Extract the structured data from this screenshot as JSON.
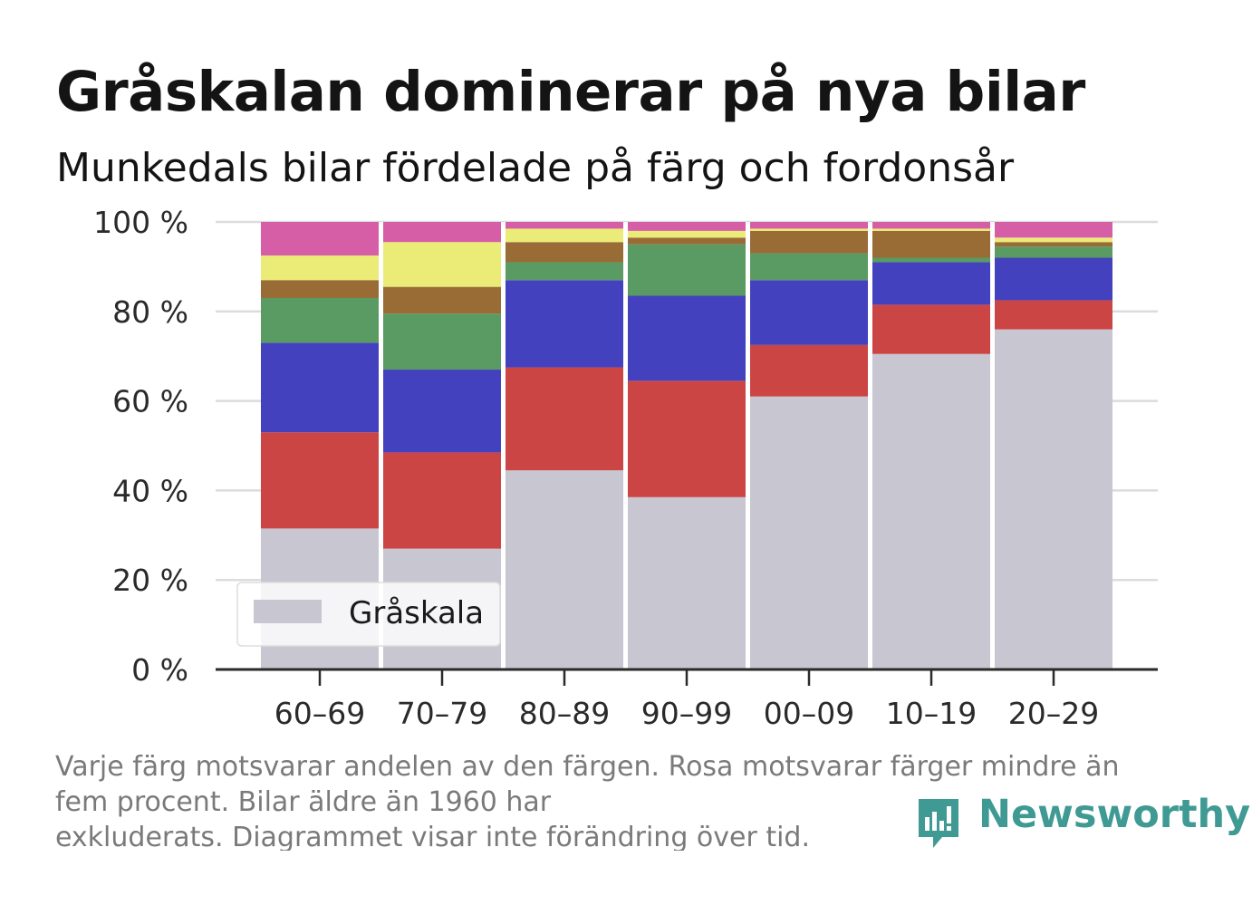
{
  "title": "Gråskalan dominerar på nya bilar",
  "subtitle": "Munkedals bilar fördelade på färg och fordonsår",
  "caption": {
    "line1": "Varje färg motsvarar andelen av den färgen. Rosa motsvarar färger mindre än",
    "line2": "fem procent. Bilar äldre än 1960 har",
    "line3": "exkluderats. Diagrammet visar inte förändring över tid."
  },
  "brand": {
    "name": "Newsworthy",
    "color": "#3f9a93",
    "icon": "newsworthy-logo-icon"
  },
  "chart_data": {
    "type": "bar",
    "stacked": true,
    "categories": [
      "60–69",
      "70–79",
      "80–89",
      "90–99",
      "00–09",
      "10–19",
      "20–29"
    ],
    "ylim": [
      0,
      100
    ],
    "yticks": [
      0,
      20,
      40,
      60,
      80,
      100
    ],
    "ytick_labels": [
      "0 %",
      "20 %",
      "40 %",
      "60 %",
      "80 %",
      "100 %"
    ],
    "grid": true,
    "legend": {
      "placement": "bottom-left",
      "entries": [
        "Gråskala"
      ]
    },
    "series": [
      {
        "name": "Gråskala",
        "color": "#c8c6d1",
        "values": [
          31.5,
          27,
          44.5,
          38.5,
          61,
          70.5,
          76
        ]
      },
      {
        "color": "#cc4545",
        "values": [
          21.5,
          21.5,
          23,
          26,
          11.5,
          11,
          6.5
        ]
      },
      {
        "color": "#4441bf",
        "values": [
          20,
          18.5,
          19.5,
          19,
          14.5,
          9.5,
          9.5
        ]
      },
      {
        "color": "#5a9a63",
        "values": [
          10,
          12.5,
          4,
          11.5,
          6,
          1,
          2.5
        ]
      },
      {
        "color": "#996b35",
        "values": [
          4,
          6,
          4.5,
          1.5,
          5,
          6,
          1
        ]
      },
      {
        "color": "#ebeb77",
        "values": [
          5.5,
          10,
          3,
          1.5,
          0.5,
          0.5,
          1
        ]
      },
      {
        "color": "#d65ea7",
        "values": [
          7.5,
          4.5,
          1.5,
          2,
          1.5,
          1.5,
          3.5
        ]
      }
    ]
  }
}
